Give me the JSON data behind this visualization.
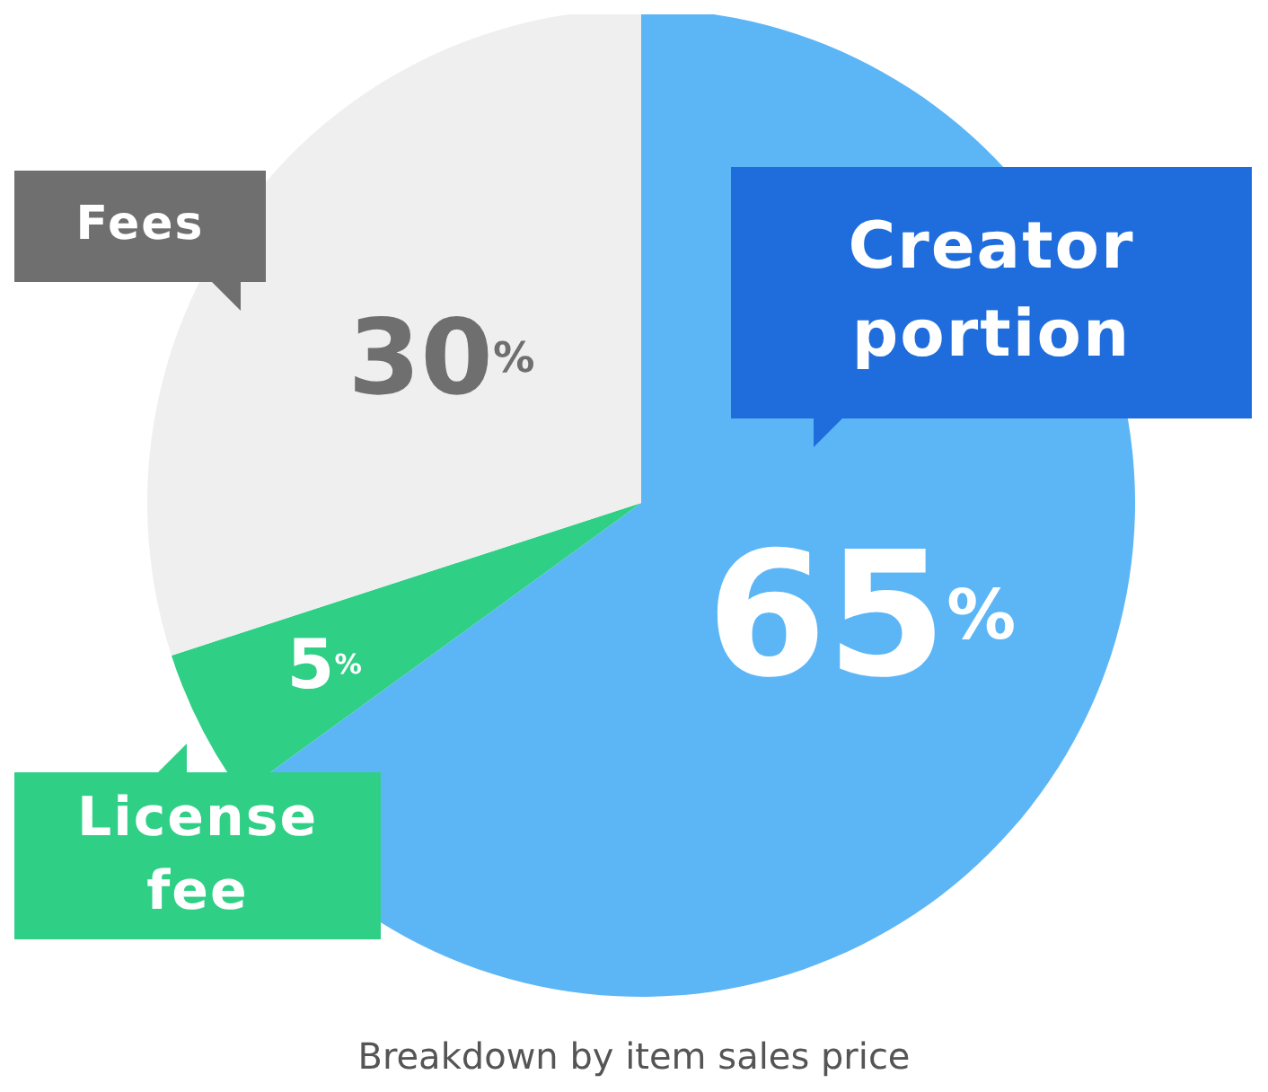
{
  "chart_data": {
    "type": "pie",
    "categories": [
      "Creator portion",
      "License fee",
      "Fees"
    ],
    "values": [
      65,
      5,
      30
    ],
    "colors": [
      "#5cb6f6",
      "#2fcf86",
      "#efefef"
    ],
    "value_labels": [
      "65%",
      "5%",
      "30%"
    ],
    "annotations": [
      "Breakdown by item sales price"
    ]
  }
}
